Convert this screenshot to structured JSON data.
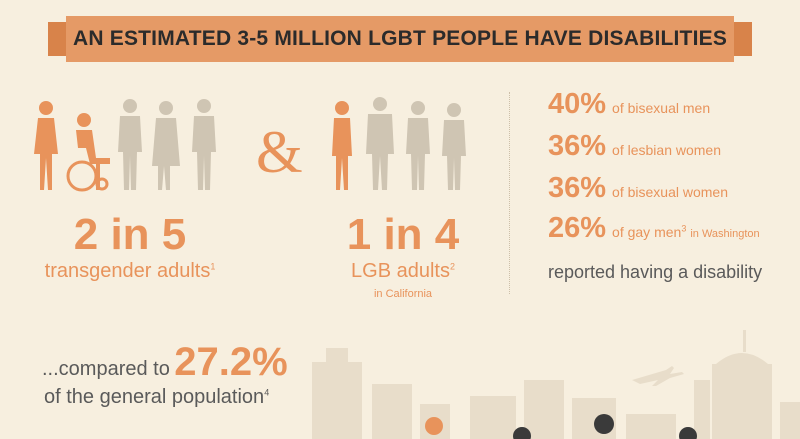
{
  "banner": {
    "title": "AN ESTIMATED 3-5 MILLION LGBT PEOPLE HAVE DISABILITIES"
  },
  "left_stat": {
    "value": "2 in 5",
    "label": "transgender adults",
    "footnote": "1"
  },
  "ampersand": "&",
  "middle_stat": {
    "value": "1 in 4",
    "label": "LGB adults",
    "footnote": "2",
    "location": "in California"
  },
  "right_list": {
    "items": [
      {
        "value": "40%",
        "label": "of bisexual men",
        "footnote": "",
        "location": ""
      },
      {
        "value": "36%",
        "label": "of lesbian women",
        "footnote": "",
        "location": ""
      },
      {
        "value": "36%",
        "label": "of bisexual women",
        "footnote": "",
        "location": ""
      },
      {
        "value": "26%",
        "label": "of gay men",
        "footnote": "3",
        "location": "in Washington"
      }
    ],
    "footer": "reported having a disability"
  },
  "comparison": {
    "prefix": "...compared to",
    "value": "27.2%",
    "label": "of the general population",
    "footnote": "4"
  },
  "colors": {
    "background": "#f7efdf",
    "accent": "#e8935b",
    "banner": "#e59a66",
    "figure_gray": "#cfc5b3",
    "skyline": "#e8ddca",
    "dark_figure": "#3a3a3a"
  },
  "icons": [
    "person-icon",
    "wheelchair-user-icon",
    "airplane-icon",
    "city-skyline-icon"
  ]
}
